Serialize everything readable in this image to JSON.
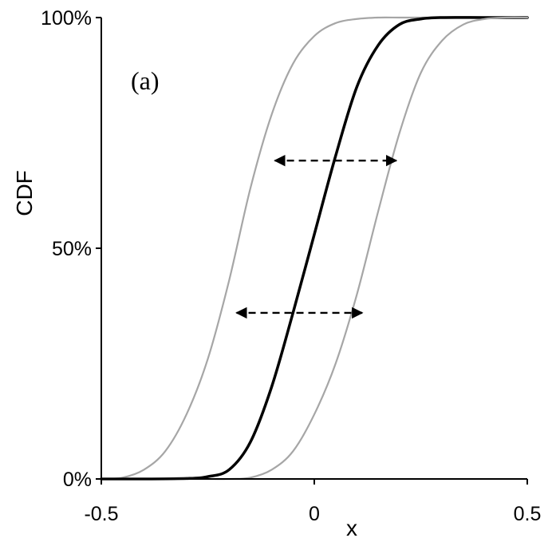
{
  "chart_data": {
    "type": "line",
    "xlabel": "x",
    "ylabel": "CDF",
    "annotation": "(a)",
    "xlim": [
      -0.5,
      0.5
    ],
    "ylim": [
      0,
      1
    ],
    "x_ticks": [
      {
        "value": -0.5,
        "label": "-0.5"
      },
      {
        "value": 0,
        "label": "0"
      },
      {
        "value": 0.5,
        "label": "0.5"
      }
    ],
    "y_ticks": [
      {
        "value": 0,
        "label": "0%"
      },
      {
        "value": 0.5,
        "label": "50%"
      },
      {
        "value": 1,
        "label": "100%"
      }
    ],
    "grid": false,
    "legend": "none",
    "series": [
      {
        "color": "#a6a6a6",
        "width": 2.2,
        "x": [
          -0.5,
          -0.45,
          -0.4,
          -0.35,
          -0.3,
          -0.25,
          -0.2,
          -0.15,
          -0.1,
          -0.05,
          0,
          0.05,
          0.1,
          0.15,
          0.2,
          0.25,
          0.3,
          0.35,
          0.4,
          0.5
        ],
        "values": [
          0,
          0.003,
          0.02,
          0.06,
          0.14,
          0.26,
          0.43,
          0.63,
          0.79,
          0.9,
          0.96,
          0.988,
          0.997,
          1,
          1,
          1,
          1,
          1,
          1,
          1
        ]
      },
      {
        "color": "#000000",
        "width": 3.5,
        "x": [
          -0.5,
          -0.4,
          -0.3,
          -0.25,
          -0.2,
          -0.15,
          -0.1,
          -0.05,
          0,
          0.05,
          0.1,
          0.15,
          0.2,
          0.25,
          0.3,
          0.4,
          0.5
        ],
        "values": [
          0,
          0,
          0.001,
          0.005,
          0.02,
          0.08,
          0.2,
          0.36,
          0.53,
          0.7,
          0.85,
          0.94,
          0.985,
          0.997,
          1,
          1,
          1
        ]
      },
      {
        "color": "#a6a6a6",
        "width": 2.2,
        "x": [
          -0.5,
          -0.3,
          -0.2,
          -0.15,
          -0.1,
          -0.05,
          0,
          0.05,
          0.1,
          0.15,
          0.2,
          0.25,
          0.3,
          0.35,
          0.4,
          0.45,
          0.5
        ],
        "values": [
          0,
          0,
          0,
          0.003,
          0.02,
          0.06,
          0.14,
          0.25,
          0.4,
          0.58,
          0.75,
          0.88,
          0.95,
          0.985,
          0.997,
          1,
          1
        ]
      }
    ],
    "arrows": [
      {
        "y": 0.69,
        "x_from": -0.1,
        "x_to": 0.2
      },
      {
        "y": 0.36,
        "x_from": -0.19,
        "x_to": 0.12
      }
    ]
  }
}
